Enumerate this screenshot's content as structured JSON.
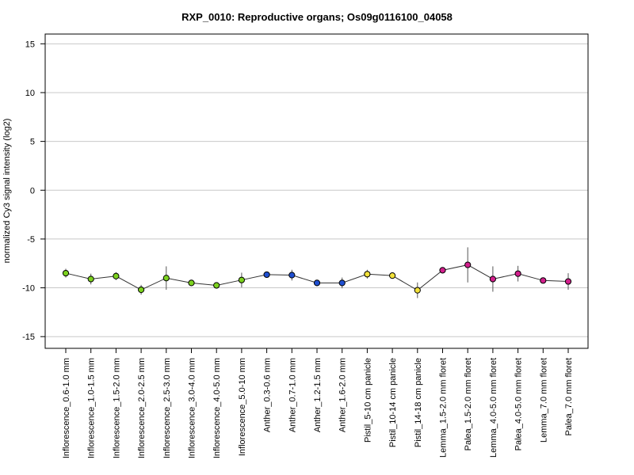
{
  "chart_data": {
    "type": "line",
    "title": "RXP_0010: Reproductive organs; Os09g0116100_04058",
    "xlabel": "",
    "ylabel": "normalized Cy3 signal intensity (log2)",
    "ylim": [
      -16.2,
      16.0
    ],
    "yticks": [
      15,
      10,
      5,
      0,
      -5,
      -10,
      -15
    ],
    "grid": "horizontal",
    "categories": [
      "Inflorescence_0.6-1.0 mm",
      "Inflorescence_1.0-1.5 mm",
      "Inflorescence_1.5-2.0 mm",
      "Inflorescence_2.0-2.5 mm",
      "Inflorescence_2.5-3.0 mm",
      "Inflorescence_3.0-4.0 mm",
      "Inflorescence_4.0-5.0 mm",
      "Inflorescence_5.0-10 mm",
      "Anther_0.3-0.6 mm",
      "Anther_0.7-1.0 mm",
      "Anther_1.2-1.5 mm",
      "Anther_1.6-2.0 mm",
      "Pistil_5-10 cm panicle",
      "Pistil_10-14 cm panicle",
      "Pistil_14-18 cm panicle",
      "Lemma_1.5-2.0 mm floret",
      "Palea_1.5-2.0 mm floret",
      "Lemma_4.0-5.0 mm floret",
      "Palea_4.0-5.0 mm floret",
      "Lemma_7.0 mm floret",
      "Palea_7.0 mm floret"
    ],
    "series": [
      {
        "values": [
          -8.5,
          -9.1,
          -8.8,
          -10.2,
          -9.0,
          -9.5,
          -9.75,
          -9.2,
          -8.65,
          -8.7,
          -9.5,
          -9.5,
          -8.6,
          -8.75,
          -10.25,
          -8.2,
          -7.65,
          -9.1,
          -8.55,
          -9.25,
          -9.35
        ],
        "error": [
          0.45,
          0.55,
          0.4,
          0.5,
          1.2,
          0.3,
          0.2,
          0.75,
          0.2,
          0.55,
          0.2,
          0.55,
          0.45,
          0.2,
          0.8,
          0.2,
          1.8,
          1.3,
          0.8,
          0.2,
          0.85
        ]
      }
    ],
    "point_colors": [
      "#7cd21e",
      "#7cd21e",
      "#7cd21e",
      "#7cd21e",
      "#7cd21e",
      "#7cd21e",
      "#7cd21e",
      "#7cd21e",
      "#1f4fd1",
      "#1f4fd1",
      "#1f4fd1",
      "#1f4fd1",
      "#f2e13a",
      "#f2e13a",
      "#f2e13a",
      "#d21f8c",
      "#d21f8c",
      "#d21f8c",
      "#d21f8c",
      "#d21f8c",
      "#d21f8c"
    ],
    "line_color": "#333333",
    "grid_color": "#c8c8c8"
  }
}
